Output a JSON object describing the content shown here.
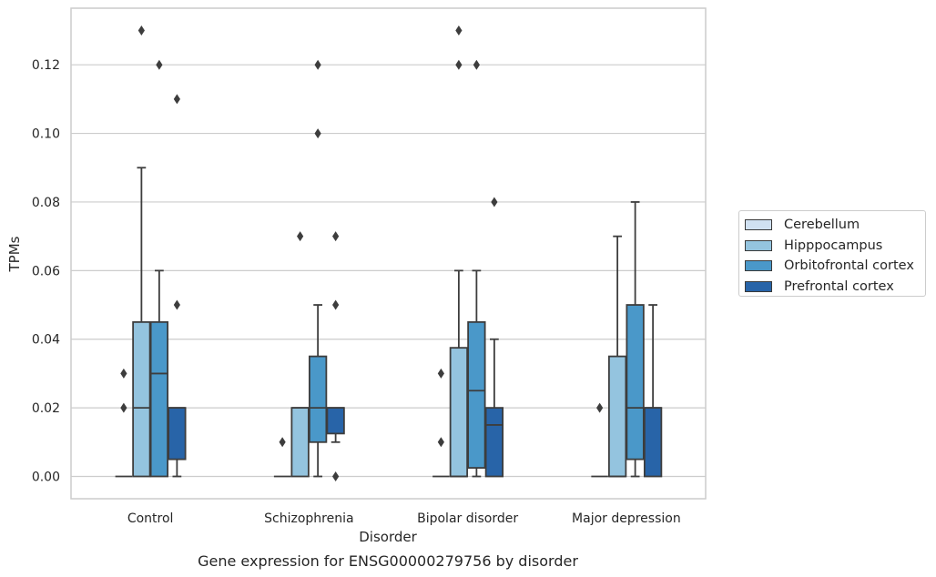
{
  "chart_data": {
    "type": "box",
    "xlabel": "Disorder",
    "ylabel": "TPMs",
    "caption": "Gene expression for ENSG00000279756 by disorder",
    "ylim": [
      -0.0065,
      0.1365
    ],
    "yticks": [
      "0.00",
      "0.02",
      "0.04",
      "0.06",
      "0.08",
      "0.10",
      "0.12"
    ],
    "ytick_values": [
      0,
      0.02,
      0.04,
      0.06,
      0.08,
      0.1,
      0.12
    ],
    "grid": "horizontal",
    "legend_position": "right",
    "categories": [
      "Control",
      "Schizophrenia",
      "Bipolar disorder",
      "Major depression"
    ],
    "series": [
      {
        "name": "Cerebellum",
        "color": "#d0e1f2",
        "boxes": [
          {
            "whisker_low": 0,
            "q1": 0,
            "median": 0,
            "q3": 0,
            "whisker_high": 0,
            "outliers": [
              0.02,
              0.03
            ]
          },
          {
            "whisker_low": 0,
            "q1": 0,
            "median": 0,
            "q3": 0,
            "whisker_high": 0,
            "outliers": [
              0.01
            ]
          },
          {
            "whisker_low": 0,
            "q1": 0,
            "median": 0,
            "q3": 0,
            "whisker_high": 0,
            "outliers": [
              0.01,
              0.03
            ]
          },
          {
            "whisker_low": 0,
            "q1": 0,
            "median": 0,
            "q3": 0,
            "whisker_high": 0,
            "outliers": [
              0.02
            ]
          }
        ]
      },
      {
        "name": "Hipppocampus",
        "color": "#94c4df",
        "boxes": [
          {
            "whisker_low": 0,
            "q1": 0,
            "median": 0.02,
            "q3": 0.045,
            "whisker_high": 0.09,
            "outliers": [
              0.13
            ]
          },
          {
            "whisker_low": 0,
            "q1": 0,
            "median": 0.02,
            "q3": 0.02,
            "whisker_high": 0.02,
            "outliers": [
              0.07
            ]
          },
          {
            "whisker_low": 0,
            "q1": 0,
            "median": 0,
            "q3": 0.0375,
            "whisker_high": 0.06,
            "outliers": [
              0.12,
              0.13
            ]
          },
          {
            "whisker_low": 0,
            "q1": 0,
            "median": 0,
            "q3": 0.035,
            "whisker_high": 0.07,
            "outliers": []
          }
        ]
      },
      {
        "name": "Orbitofrontal cortex",
        "color": "#4a98c9",
        "boxes": [
          {
            "whisker_low": 0,
            "q1": 0,
            "median": 0.03,
            "q3": 0.045,
            "whisker_high": 0.06,
            "outliers": [
              0.12
            ]
          },
          {
            "whisker_low": 0,
            "q1": 0.01,
            "median": 0.02,
            "q3": 0.035,
            "whisker_high": 0.05,
            "outliers": [
              0.1,
              0.12
            ]
          },
          {
            "whisker_low": 0,
            "q1": 0.0025,
            "median": 0.025,
            "q3": 0.045,
            "whisker_high": 0.06,
            "outliers": [
              0.12
            ]
          },
          {
            "whisker_low": 0,
            "q1": 0.005,
            "median": 0.02,
            "q3": 0.05,
            "whisker_high": 0.08,
            "outliers": []
          }
        ]
      },
      {
        "name": "Prefrontal cortex",
        "color": "#2864a8",
        "boxes": [
          {
            "whisker_low": 0,
            "q1": 0.005,
            "median": 0.02,
            "q3": 0.02,
            "whisker_high": 0.02,
            "outliers": [
              0.05,
              0.11
            ]
          },
          {
            "whisker_low": 0.01,
            "q1": 0.0125,
            "median": 0.02,
            "q3": 0.02,
            "whisker_high": 0.02,
            "outliers": [
              0,
              0.05,
              0.07
            ]
          },
          {
            "whisker_low": 0,
            "q1": 0,
            "median": 0.015,
            "q3": 0.02,
            "whisker_high": 0.04,
            "outliers": [
              0.08
            ]
          },
          {
            "whisker_low": 0,
            "q1": 0,
            "median": 0.02,
            "q3": 0.02,
            "whisker_high": 0.05,
            "outliers": []
          }
        ]
      }
    ]
  }
}
